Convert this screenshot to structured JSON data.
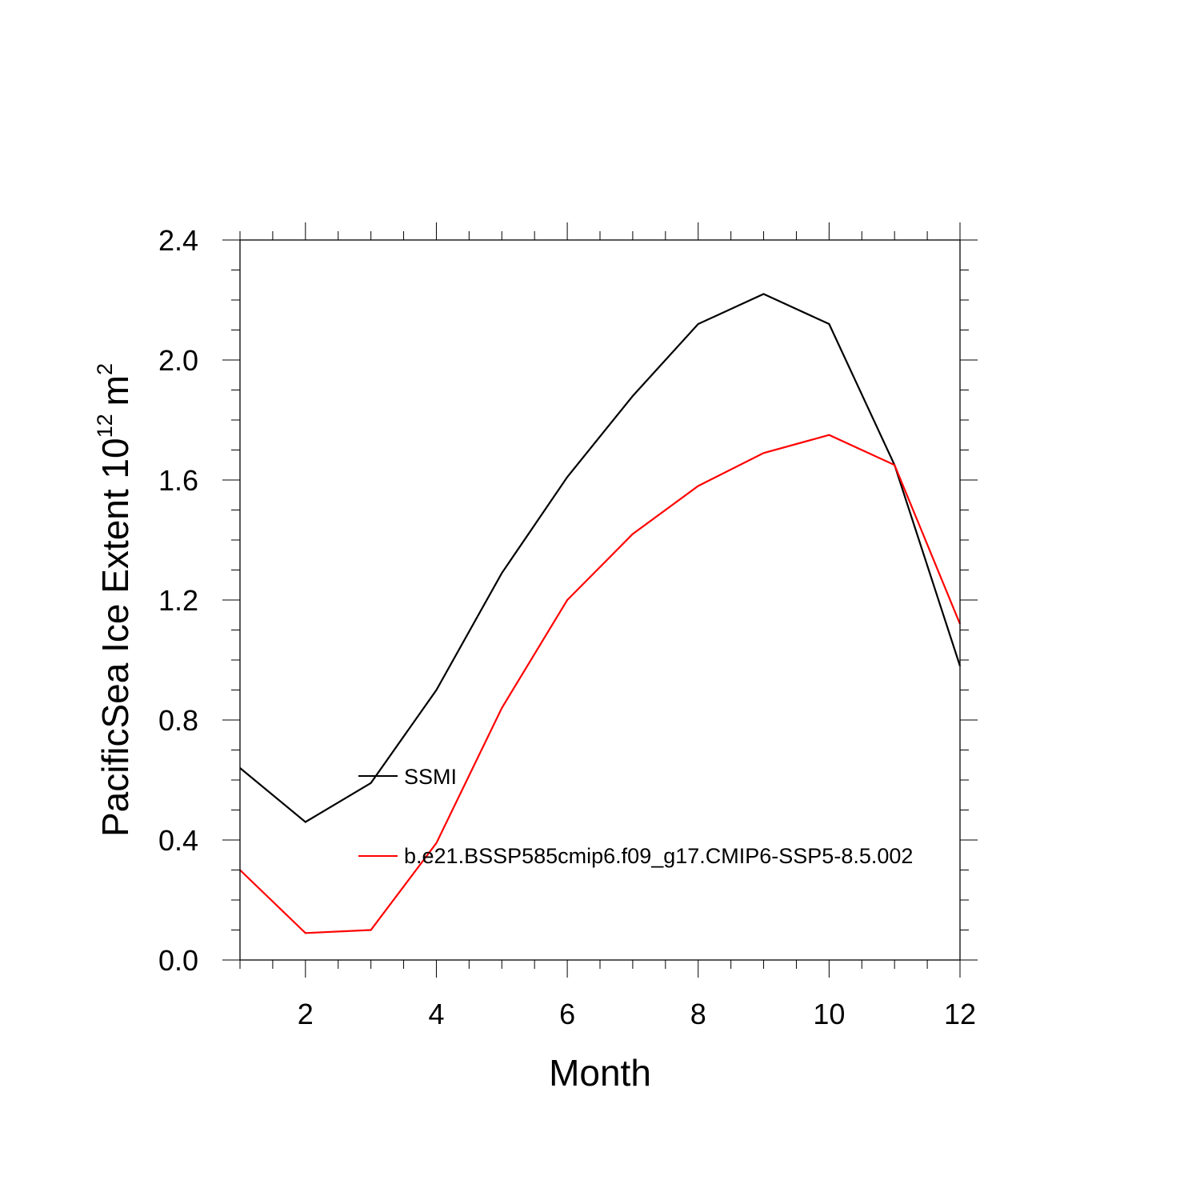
{
  "chart_data": {
    "type": "line",
    "title": "",
    "xlabel": "Month",
    "ylabel": "PacificSea Ice Extent 10",
    "ylabel_superscript": "12",
    "ylabel_unit": "m",
    "ylabel_unit_superscript": "2",
    "xlim": [
      1,
      12
    ],
    "ylim": [
      0,
      2.4
    ],
    "xticks": [
      2,
      4,
      6,
      8,
      10,
      12
    ],
    "xtick_labels": [
      "2",
      "4",
      "6",
      "8",
      "10",
      "12"
    ],
    "yticks": [
      0,
      0.4,
      0.8,
      1.2,
      1.6,
      2.0,
      2.4
    ],
    "ytick_labels": [
      "0.0",
      "0.4",
      "0.8",
      "1.2",
      "1.6",
      "2.0",
      "2.4"
    ],
    "grid": false,
    "legend_position": "center-left inside plot",
    "x": [
      1,
      2,
      3,
      4,
      5,
      6,
      7,
      8,
      9,
      10,
      11,
      12
    ],
    "series": [
      {
        "name": "SSMI",
        "color": "#000000",
        "values": [
          0.64,
          0.46,
          0.59,
          0.9,
          1.29,
          1.61,
          1.88,
          2.12,
          2.22,
          2.12,
          1.65,
          0.98
        ]
      },
      {
        "name": "b.e21.BSSP585cmip6.f09_g17.CMIP6-SSP5-8.5.002",
        "color": "#ff0000",
        "values": [
          0.3,
          0.09,
          0.1,
          0.39,
          0.84,
          1.2,
          1.42,
          1.58,
          1.69,
          1.75,
          1.65,
          1.12
        ]
      }
    ]
  }
}
